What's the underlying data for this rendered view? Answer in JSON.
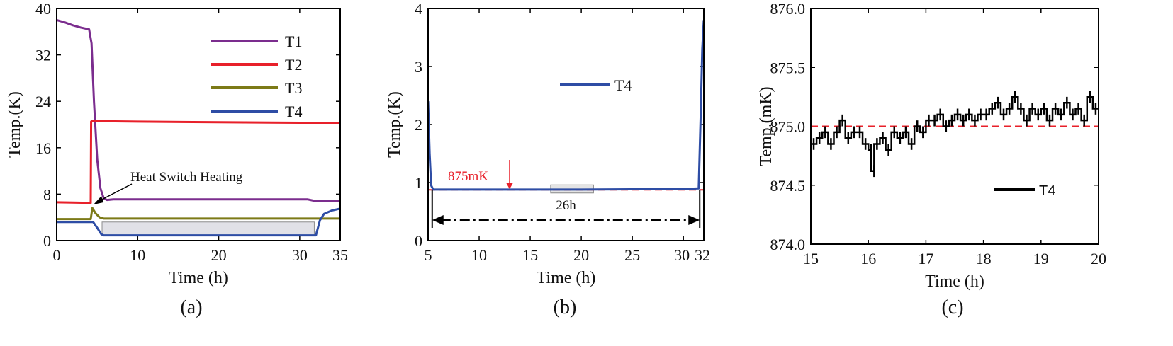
{
  "chart_data": [
    {
      "type": "line",
      "panel_label": "(a)",
      "xlabel": "Time (h)",
      "ylabel": "Temp.(K)",
      "xlim": [
        0,
        35
      ],
      "ylim": [
        0,
        40
      ],
      "xticks": [
        "0",
        "10",
        "20",
        "30",
        "35"
      ],
      "yticks": [
        "0",
        "8",
        "16",
        "24",
        "32",
        "40"
      ],
      "legend_position": "top-right",
      "annotation": "Heat Switch Heating",
      "series": [
        {
          "name": "T1",
          "color": "#7B2D8E",
          "x": [
            0,
            1,
            2,
            3,
            4,
            4.3,
            4.6,
            5,
            5.4,
            5.8,
            6.2,
            7,
            8,
            10,
            20,
            30,
            31,
            32,
            35
          ],
          "y": [
            38,
            37.6,
            37.1,
            36.7,
            36.4,
            34,
            24,
            14,
            9,
            7.3,
            7,
            7.1,
            7.1,
            7.1,
            7.1,
            7.1,
            7.1,
            6.8,
            6.8
          ]
        },
        {
          "name": "T2",
          "color": "#E8202A",
          "x": [
            0,
            2,
            4.2,
            4.25,
            4.4,
            10,
            20,
            30,
            35
          ],
          "y": [
            6.6,
            6.55,
            6.5,
            20.5,
            20.6,
            20.5,
            20.4,
            20.3,
            20.3
          ]
        },
        {
          "name": "T3",
          "color": "#7C7A17",
          "x": [
            0,
            4.2,
            4.4,
            4.8,
            5.3,
            5.8,
            10,
            20,
            30,
            35
          ],
          "y": [
            3.7,
            3.7,
            5.6,
            4.7,
            4,
            3.8,
            3.8,
            3.8,
            3.8,
            3.8
          ]
        },
        {
          "name": "T4",
          "color": "#2E4DA5",
          "x": [
            0,
            4.5,
            5,
            5.5,
            5.8,
            10,
            20,
            30,
            32,
            32.5,
            33,
            34,
            35
          ],
          "y": [
            3.2,
            3.2,
            2.2,
            1.1,
            0.9,
            0.9,
            0.9,
            0.9,
            0.9,
            3.5,
            4.6,
            5.2,
            5.5
          ]
        }
      ]
    },
    {
      "type": "line",
      "panel_label": "(b)",
      "xlabel": "Time (h)",
      "ylabel": "Temp.(K)",
      "xlim": [
        5,
        32
      ],
      "ylim": [
        0,
        4
      ],
      "xticks": [
        "5",
        "10",
        "15",
        "20",
        "25",
        "30",
        "32"
      ],
      "yticks": [
        "0",
        "1",
        "2",
        "3",
        "4"
      ],
      "legend_position": "top-center",
      "reference_line": {
        "label": "875mK",
        "value": 0.875,
        "color": "#E8202A"
      },
      "span_annotation": {
        "label": "26h",
        "from": 5.4,
        "to": 31.6
      },
      "series": [
        {
          "name": "T4",
          "color": "#2E4DA5",
          "x": [
            5,
            5.15,
            5.3,
            5.5,
            6,
            10,
            20,
            30,
            31.5,
            31.7,
            31.85,
            32
          ],
          "y": [
            2.4,
            1.5,
            0.95,
            0.88,
            0.88,
            0.88,
            0.88,
            0.89,
            0.9,
            2.2,
            3.3,
            3.8
          ]
        }
      ]
    },
    {
      "type": "line",
      "panel_label": "(c)",
      "xlabel": "Time (h)",
      "ylabel": "Temp.(mK)",
      "xlim": [
        15,
        20
      ],
      "ylim": [
        874.0,
        876.0
      ],
      "xticks": [
        "15",
        "16",
        "17",
        "18",
        "19",
        "20"
      ],
      "yticks": [
        "874.0",
        "874.5",
        "875.0",
        "875.5",
        "876.0"
      ],
      "legend_position": "bottom-right",
      "reference_line": {
        "label": "",
        "value": 875.0,
        "color": "#E8202A"
      },
      "series": [
        {
          "name": "T4",
          "color": "#000000",
          "x": [
            15.0,
            15.1,
            15.2,
            15.3,
            15.4,
            15.5,
            15.6,
            15.7,
            15.8,
            15.9,
            16.0,
            16.05,
            16.1,
            16.2,
            16.3,
            16.4,
            16.5,
            16.6,
            16.7,
            16.8,
            16.9,
            17.0,
            17.1,
            17.2,
            17.3,
            17.4,
            17.5,
            17.6,
            17.7,
            17.8,
            17.9,
            18.0,
            18.1,
            18.2,
            18.3,
            18.4,
            18.5,
            18.6,
            18.7,
            18.8,
            18.9,
            19.0,
            19.1,
            19.2,
            19.3,
            19.4,
            19.5,
            19.6,
            19.7,
            19.8,
            19.9,
            20.0
          ],
          "y": [
            874.85,
            874.9,
            874.95,
            874.85,
            874.95,
            875.05,
            874.9,
            874.95,
            874.95,
            874.85,
            874.8,
            874.62,
            874.85,
            874.9,
            874.8,
            874.95,
            874.9,
            874.95,
            874.85,
            875.0,
            874.95,
            875.05,
            875.05,
            875.1,
            875.0,
            875.05,
            875.1,
            875.05,
            875.1,
            875.05,
            875.1,
            875.1,
            875.15,
            875.2,
            875.1,
            875.15,
            875.25,
            875.15,
            875.05,
            875.15,
            875.1,
            875.15,
            875.05,
            875.15,
            875.1,
            875.2,
            875.1,
            875.15,
            875.05,
            875.25,
            875.15,
            875.15
          ]
        }
      ]
    }
  ]
}
